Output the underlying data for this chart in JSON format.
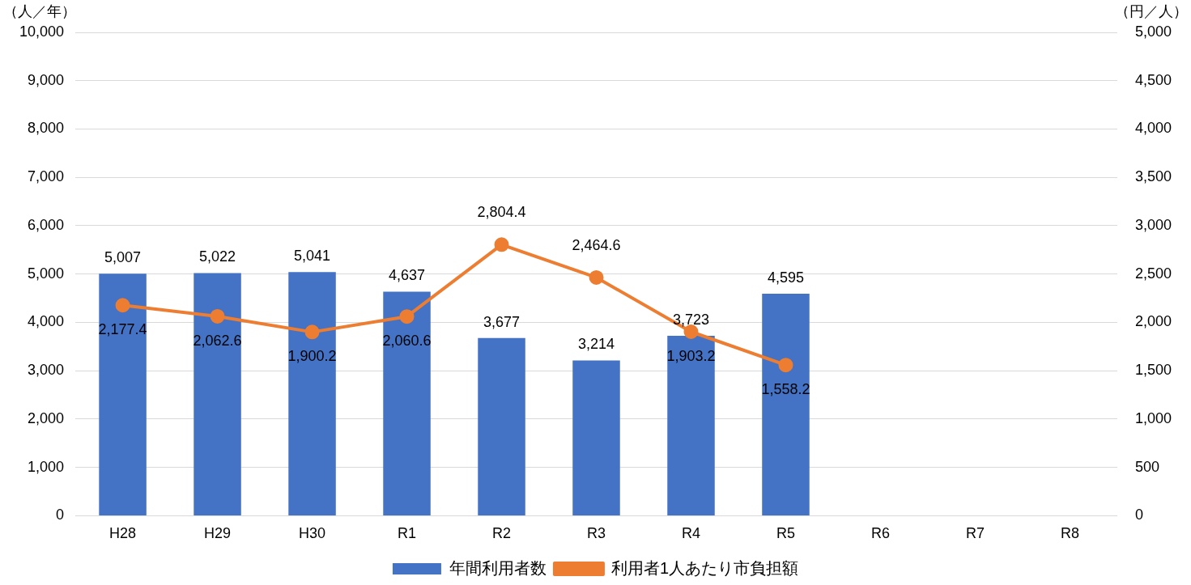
{
  "chart_data": {
    "type": "bar",
    "categories": [
      "H28",
      "H29",
      "H30",
      "R1",
      "R2",
      "R3",
      "R4",
      "R5",
      "R6",
      "R7",
      "R8"
    ],
    "ylabel": "（人／年）",
    "y2label": "（円／人）",
    "series": [
      {
        "name": "年間利用者数",
        "color": "#4472c4",
        "values": [
          5007,
          5022,
          5041,
          4637,
          3677,
          3214,
          3723,
          4595,
          null,
          null,
          null
        ],
        "value_labels": [
          "5,007",
          "5,022",
          "5,041",
          "4,637",
          "3,677",
          "3,214",
          "3,723",
          "4,595",
          null,
          null,
          null
        ]
      },
      {
        "name": "利用者1人あたり市負担額",
        "type": "line",
        "axis": "y2",
        "color": "#ed7d31",
        "marker": "circle",
        "values": [
          2177.4,
          2062.6,
          1900.2,
          2060.6,
          2804.4,
          2464.6,
          1903.2,
          1558.2,
          null,
          null,
          null
        ],
        "value_labels": [
          "2,177.4",
          "2,062.6",
          "1,900.2",
          "2,060.6",
          "2,804.4",
          "2,464.6",
          "1,903.2",
          "1,558.2",
          null,
          null,
          null
        ]
      }
    ],
    "ylim": [
      0,
      10000
    ],
    "yticks": [
      0,
      {
        "value": 1000,
        "label": "1,000"
      },
      {
        "value": 2000,
        "label": "2,000"
      },
      {
        "value": 3000,
        "label": "3,000"
      },
      {
        "value": 4000,
        "label": "4,000"
      },
      {
        "value": 5000,
        "label": "5,000"
      },
      {
        "value": 6000,
        "label": "6,000"
      },
      {
        "value": 7000,
        "label": "7,000"
      },
      {
        "value": 8000,
        "label": "8,000"
      },
      {
        "value": 9000,
        "label": "9,000"
      },
      {
        "value": 10000,
        "label": "10,000"
      }
    ],
    "y2lim": [
      0,
      5000
    ],
    "y2ticks": [
      0,
      500,
      {
        "value": 1000,
        "label": "1,000"
      },
      {
        "value": 1500,
        "label": "1,500"
      },
      {
        "value": 2000,
        "label": "2,000"
      },
      {
        "value": 2500,
        "label": "2,500"
      },
      {
        "value": 3000,
        "label": "3,000"
      },
      {
        "value": 3500,
        "label": "3,500"
      },
      {
        "value": 4000,
        "label": "4,000"
      },
      {
        "value": 4500,
        "label": "4,500"
      },
      {
        "value": 5000,
        "label": "5,000"
      }
    ],
    "grid": "y",
    "legend": "bottom"
  }
}
